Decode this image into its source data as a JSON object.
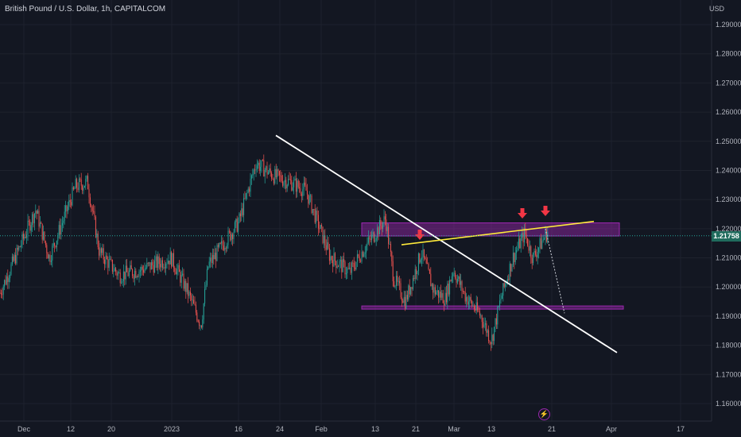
{
  "header": {
    "title": "British Pound / U.S. Dollar, 1h, CAPITALCOM",
    "currency": "USD"
  },
  "price_badge": "1.21758",
  "colors": {
    "background": "#131722",
    "candle_up": "#26a69a",
    "candle_down": "#ef5350",
    "grid": "#1e222d",
    "zone_fill": "#9c27b0",
    "trendline_down": "#ffffff",
    "trendline_up": "#ffeb3b",
    "arrow": "#f23645",
    "current_price_line": "#26a69a"
  },
  "icons": {
    "bottom_marker": "lightning-icon"
  },
  "chart_data": {
    "type": "candlestick",
    "timeframe": "1h",
    "symbol": "British Pound / U.S. Dollar",
    "ylim": [
      1.155,
      1.295
    ],
    "y_ticks": [
      "1.16000",
      "1.17000",
      "1.18000",
      "1.19000",
      "1.20000",
      "1.21000",
      "1.22000",
      "1.23000",
      "1.24000",
      "1.25000",
      "1.26000",
      "1.27000",
      "1.28000",
      "1.29000"
    ],
    "x_ticks": [
      "Dec",
      "12",
      "20",
      "2023",
      "16",
      "24",
      "Feb",
      "13",
      "21",
      "Mar",
      "13",
      "21",
      "Apr",
      "17"
    ],
    "current_price": 1.21758,
    "path_points": [
      [
        "Dec",
        1.198
      ],
      [
        "Dec+",
        1.2265
      ],
      [
        "Dec++",
        1.21
      ],
      [
        "12",
        1.2345
      ],
      [
        "12+",
        1.236
      ],
      [
        "20",
        1.212
      ],
      [
        "20+",
        1.204
      ],
      [
        "2023-",
        1.206
      ],
      [
        "2023",
        1.21
      ],
      [
        "2023+",
        1.199
      ],
      [
        "2023++",
        1.187
      ],
      [
        "16",
        1.2075
      ],
      [
        "16+",
        1.222
      ],
      [
        "24-",
        1.2425
      ],
      [
        "24",
        1.238
      ],
      [
        "24+",
        1.236
      ],
      [
        "Feb-",
        1.233
      ],
      [
        "Feb",
        1.2105
      ],
      [
        "Feb+",
        1.205
      ],
      [
        "13-",
        1.212
      ],
      [
        "13",
        1.2235
      ],
      [
        "13+",
        1.203
      ],
      [
        "21-",
        1.195
      ],
      [
        "21",
        1.212
      ],
      [
        "21+",
        1.199
      ],
      [
        "Mar-",
        1.196
      ],
      [
        "Mar",
        1.206
      ],
      [
        "Mar+",
        1.197
      ],
      [
        "13-",
        1.19
      ],
      [
        "13",
        1.1815
      ],
      [
        "13+",
        1.196
      ],
      [
        "13++",
        1.21
      ],
      [
        "21-",
        1.2185
      ],
      [
        "21",
        1.21
      ],
      [
        "21+",
        1.2195
      ]
    ],
    "zones": [
      {
        "y_low": 1.2175,
        "y_high": 1.222
      },
      {
        "y_low": 1.1925,
        "y_high": 1.1935
      }
    ],
    "annotations": {
      "down_trendline": {
        "from": 1.252,
        "to": 1.1775
      },
      "up_trendline": {
        "from": 1.2145,
        "to": 1.2225
      },
      "projection": {
        "from": 1.22,
        "to": 1.191
      },
      "arrows": 3
    },
    "grid": true,
    "legend": "none"
  }
}
